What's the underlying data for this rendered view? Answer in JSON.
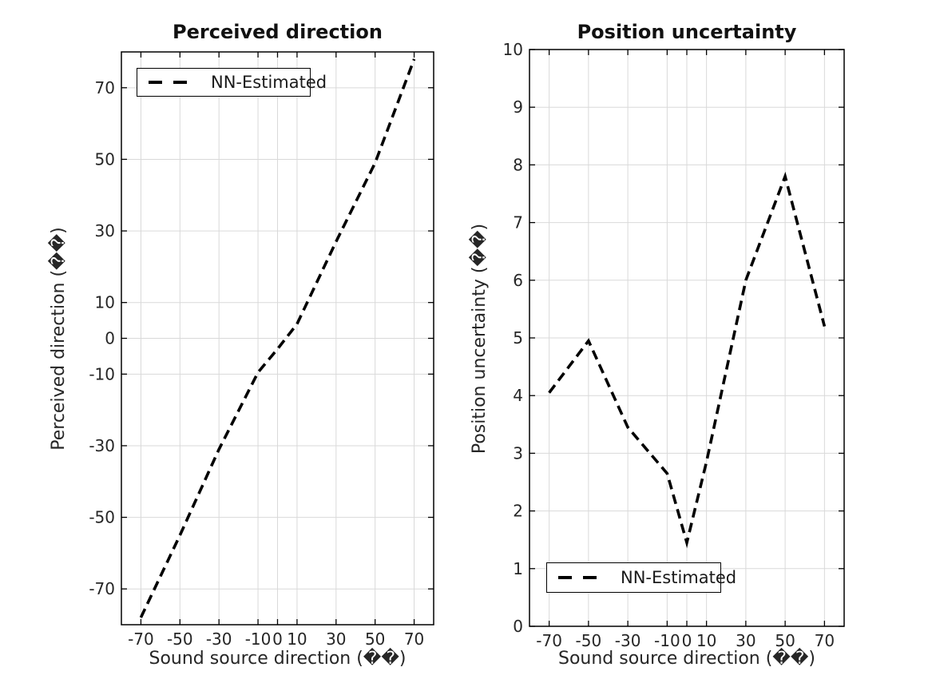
{
  "figure": {
    "background": "#ffffff",
    "line_color": "#000000",
    "grid_color": "#d9d9d9",
    "text_color": "#262626"
  },
  "chart_data": [
    {
      "type": "line",
      "title": "Perceived direction",
      "xlabel": "Sound source direction (��)",
      "ylabel": "Perceived direction (��)",
      "xlim": [
        -80,
        80
      ],
      "ylim": [
        -80,
        80
      ],
      "xticks": [
        -70,
        -50,
        -30,
        -10,
        0,
        10,
        30,
        50,
        70
      ],
      "yticks": [
        -70,
        -50,
        -30,
        -10,
        0,
        10,
        30,
        50,
        70
      ],
      "grid": true,
      "legend_position": "top-left",
      "series": [
        {
          "name": "NN-Estimated",
          "line_style": "dashed",
          "color": "#000000",
          "x": [
            -70,
            -50,
            -30,
            -10,
            0,
            10,
            30,
            50,
            70
          ],
          "y": [
            -78,
            -55,
            -31,
            -9.5,
            -3,
            4,
            27,
            49,
            78
          ]
        }
      ]
    },
    {
      "type": "line",
      "title": "Position uncertainty",
      "xlabel": "Sound source direction (��)",
      "ylabel": "Position uncertainty (��)",
      "xlim": [
        -80,
        80
      ],
      "ylim": [
        0,
        10
      ],
      "xticks": [
        -70,
        -50,
        -30,
        -10,
        0,
        10,
        30,
        50,
        70
      ],
      "yticks": [
        0,
        1,
        2,
        3,
        4,
        5,
        6,
        7,
        8,
        9,
        10
      ],
      "grid": true,
      "legend_position": "bottom-left",
      "series": [
        {
          "name": "NN-Estimated",
          "line_style": "dashed",
          "color": "#000000",
          "x": [
            -70,
            -50,
            -30,
            -10,
            0,
            10,
            30,
            50,
            70
          ],
          "y": [
            4.05,
            4.95,
            3.45,
            2.65,
            1.45,
            2.85,
            6.0,
            7.8,
            5.2
          ]
        }
      ]
    }
  ]
}
